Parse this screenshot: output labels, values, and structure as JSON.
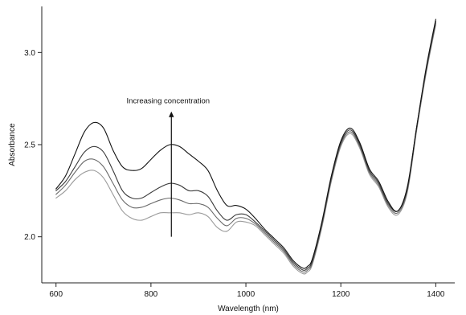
{
  "chart_data": {
    "type": "line",
    "title": "",
    "xlabel": "Wavelength (nm)",
    "ylabel": "Absorbance",
    "xlim": [
      570,
      1440
    ],
    "ylim": [
      1.75,
      3.25
    ],
    "x_ticks": [
      600,
      800,
      1000,
      1200,
      1400
    ],
    "y_ticks": [
      2.0,
      2.5,
      3.0
    ],
    "grid": false,
    "legend": "none",
    "annotation": {
      "text": "Increasing concentration",
      "arrow_x": 843,
      "arrow_from_y": 2.0,
      "arrow_to_y": 2.68
    },
    "series": [
      {
        "color": "#111111",
        "x": [
          600,
          620,
          640,
          660,
          680,
          700,
          720,
          740,
          760,
          780,
          800,
          820,
          840,
          860,
          880,
          900,
          920,
          940,
          960,
          980,
          1000,
          1020,
          1040,
          1060,
          1080,
          1100,
          1120,
          1130,
          1140,
          1160,
          1180,
          1200,
          1220,
          1240,
          1260,
          1280,
          1300,
          1320,
          1340,
          1360,
          1380,
          1400
        ],
        "y": [
          2.26,
          2.33,
          2.45,
          2.57,
          2.62,
          2.59,
          2.47,
          2.38,
          2.36,
          2.37,
          2.42,
          2.47,
          2.5,
          2.49,
          2.45,
          2.41,
          2.36,
          2.25,
          2.17,
          2.17,
          2.15,
          2.1,
          2.04,
          1.99,
          1.94,
          1.87,
          1.83,
          1.84,
          1.88,
          2.08,
          2.33,
          2.52,
          2.59,
          2.51,
          2.37,
          2.3,
          2.19,
          2.14,
          2.27,
          2.6,
          2.92,
          3.18
        ]
      },
      {
        "color": "#3a3a3a",
        "x": [
          600,
          620,
          640,
          660,
          680,
          700,
          720,
          740,
          760,
          780,
          800,
          820,
          840,
          860,
          880,
          900,
          920,
          940,
          960,
          980,
          1000,
          1020,
          1040,
          1060,
          1080,
          1100,
          1120,
          1130,
          1140,
          1160,
          1180,
          1200,
          1220,
          1240,
          1260,
          1280,
          1300,
          1320,
          1340,
          1360,
          1380,
          1400
        ],
        "y": [
          2.25,
          2.3,
          2.38,
          2.46,
          2.49,
          2.46,
          2.36,
          2.25,
          2.21,
          2.21,
          2.24,
          2.27,
          2.29,
          2.28,
          2.25,
          2.25,
          2.22,
          2.14,
          2.09,
          2.12,
          2.12,
          2.08,
          2.03,
          1.98,
          1.93,
          1.86,
          1.82,
          1.83,
          1.87,
          2.07,
          2.32,
          2.51,
          2.58,
          2.5,
          2.36,
          2.29,
          2.18,
          2.14,
          2.26,
          2.6,
          2.91,
          3.17
        ]
      },
      {
        "color": "#6a6a6a",
        "x": [
          600,
          620,
          640,
          660,
          680,
          700,
          720,
          740,
          760,
          780,
          800,
          820,
          840,
          860,
          880,
          900,
          920,
          940,
          960,
          980,
          1000,
          1020,
          1040,
          1060,
          1080,
          1100,
          1120,
          1130,
          1140,
          1160,
          1180,
          1200,
          1220,
          1240,
          1260,
          1280,
          1300,
          1320,
          1340,
          1360,
          1380,
          1400
        ],
        "y": [
          2.23,
          2.28,
          2.35,
          2.41,
          2.42,
          2.38,
          2.29,
          2.2,
          2.16,
          2.16,
          2.18,
          2.2,
          2.21,
          2.2,
          2.18,
          2.18,
          2.16,
          2.1,
          2.06,
          2.1,
          2.1,
          2.07,
          2.02,
          1.97,
          1.92,
          1.85,
          1.81,
          1.82,
          1.86,
          2.06,
          2.31,
          2.5,
          2.57,
          2.49,
          2.35,
          2.28,
          2.17,
          2.13,
          2.25,
          2.59,
          2.9,
          3.16
        ]
      },
      {
        "color": "#9a9a9a",
        "x": [
          600,
          620,
          640,
          660,
          680,
          700,
          720,
          740,
          760,
          780,
          800,
          820,
          840,
          860,
          880,
          900,
          920,
          940,
          960,
          980,
          1000,
          1020,
          1040,
          1060,
          1080,
          1100,
          1120,
          1130,
          1140,
          1160,
          1180,
          1200,
          1220,
          1240,
          1260,
          1280,
          1300,
          1320,
          1340,
          1360,
          1380,
          1400
        ],
        "y": [
          2.21,
          2.25,
          2.31,
          2.35,
          2.36,
          2.32,
          2.23,
          2.14,
          2.1,
          2.09,
          2.11,
          2.13,
          2.13,
          2.13,
          2.12,
          2.13,
          2.11,
          2.05,
          2.03,
          2.08,
          2.08,
          2.06,
          2.01,
          1.96,
          1.91,
          1.84,
          1.8,
          1.81,
          1.85,
          2.05,
          2.3,
          2.49,
          2.56,
          2.48,
          2.34,
          2.27,
          2.16,
          2.12,
          2.24,
          2.58,
          2.89,
          3.15
        ]
      }
    ]
  }
}
